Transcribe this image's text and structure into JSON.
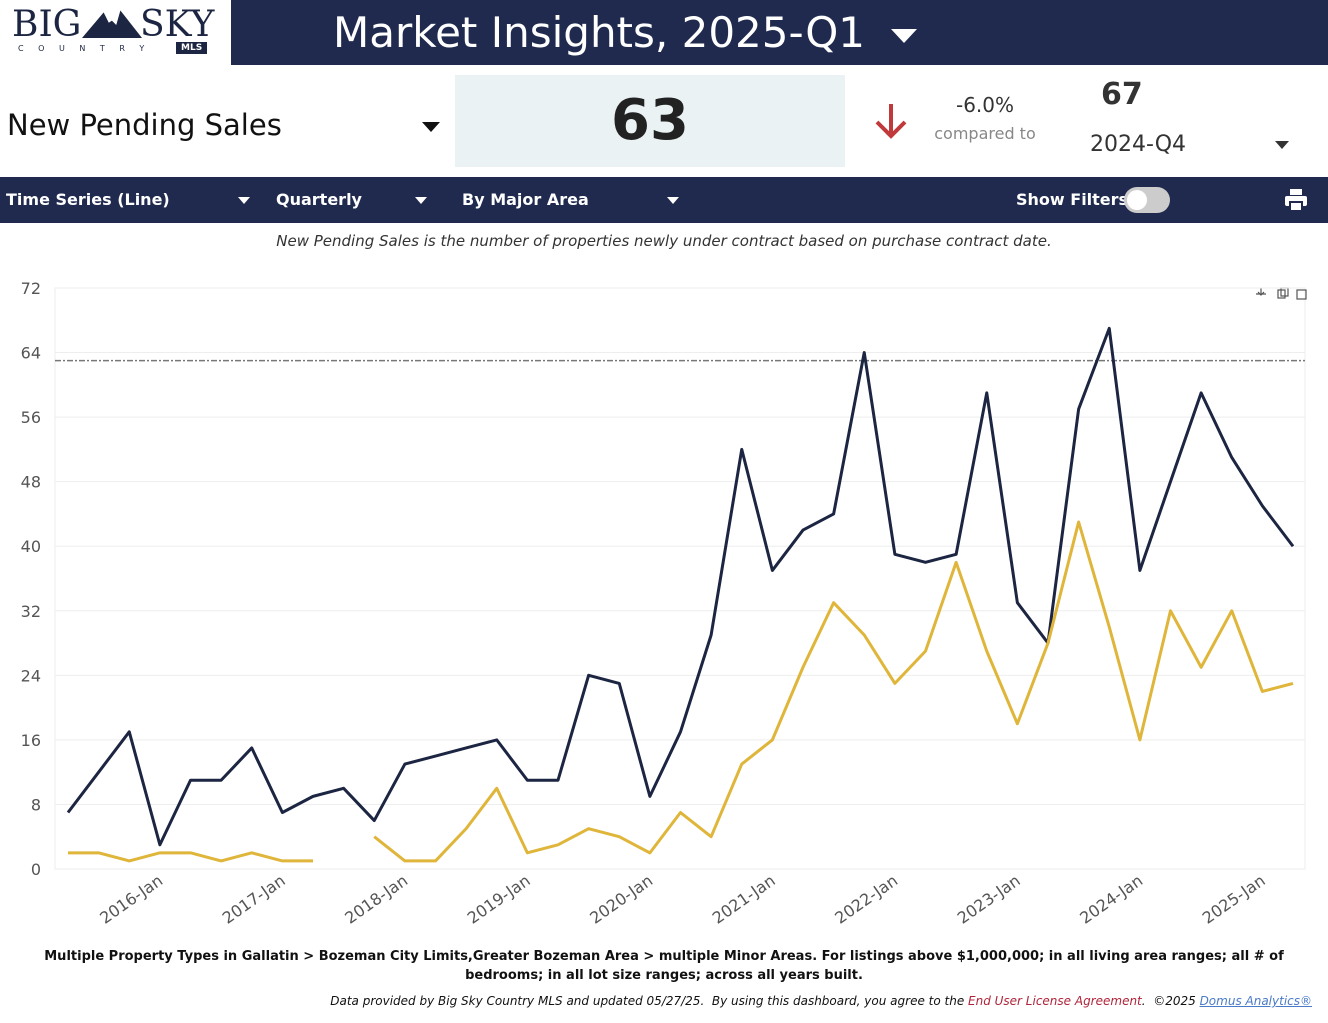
{
  "header": {
    "logo_big": "BIG",
    "logo_sky": "SKY",
    "logo_country": "C O U N T R Y",
    "logo_mls": "MLS",
    "title": "Market Insights, 2025-Q1"
  },
  "kpi": {
    "metric": "New Pending Sales",
    "value": "63",
    "change": "-6.0%",
    "compared_label": "compared to",
    "compare_value": "67",
    "compare_period": "2024-Q4"
  },
  "toolbar": {
    "view": "Time Series (Line)",
    "period": "Quarterly",
    "grouping": "By Major Area",
    "filters_label": "Show Filters:"
  },
  "description": "New Pending Sales is the number of properties newly under contract based on purchase contract date.",
  "chart_data": {
    "type": "line",
    "categories": [
      null,
      null,
      null,
      "2016-Jan",
      null,
      null,
      null,
      "2017-Jan",
      null,
      null,
      null,
      "2018-Jan",
      null,
      null,
      null,
      "2019-Jan",
      null,
      null,
      null,
      "2020-Jan",
      null,
      null,
      null,
      "2021-Jan",
      null,
      null,
      null,
      "2022-Jan",
      null,
      null,
      null,
      "2023-Jan",
      null,
      null,
      null,
      "2024-Jan",
      null,
      null,
      null,
      "2025-Jan",
      null
    ],
    "series": [
      {
        "color": "#1c2541",
        "values": [
          7,
          12,
          17,
          3,
          11,
          11,
          15,
          7,
          9,
          10,
          6,
          13,
          14,
          15,
          16,
          11,
          11,
          24,
          23,
          9,
          17,
          29,
          52,
          37,
          42,
          44,
          64,
          39,
          38,
          39,
          59,
          33,
          28,
          57,
          67,
          37,
          48,
          59,
          51,
          45,
          40
        ]
      },
      {
        "color": "#dfb53a",
        "values": [
          2,
          2,
          1,
          2,
          2,
          1,
          2,
          1,
          1,
          null,
          4,
          1,
          1,
          5,
          10,
          2,
          3,
          5,
          4,
          2,
          7,
          4,
          13,
          16,
          25,
          33,
          29,
          23,
          27,
          38,
          27,
          18,
          28,
          43,
          30,
          16,
          32,
          25,
          32,
          22,
          23
        ]
      }
    ],
    "reference_line": 63,
    "ylim": [
      0,
      72
    ],
    "yticks": [
      0,
      8,
      16,
      24,
      32,
      40,
      48,
      56,
      64,
      72
    ],
    "grid": true
  },
  "footnote": "Multiple Property Types in Gallatin > Bozeman City Limits,Greater Bozeman Area > multiple Minor Areas. For listings above $1,000,000; in all living area ranges; all # of bedrooms; in all lot size ranges; across all years built.",
  "footer": {
    "text1": "Data provided by Big Sky Country MLS and updated 05/27/25.  By using this dashboard, you agree to the ",
    "link1": "End User License Agreement",
    "text2": ".  ©2025 ",
    "link2": "Domus Analytics®"
  }
}
